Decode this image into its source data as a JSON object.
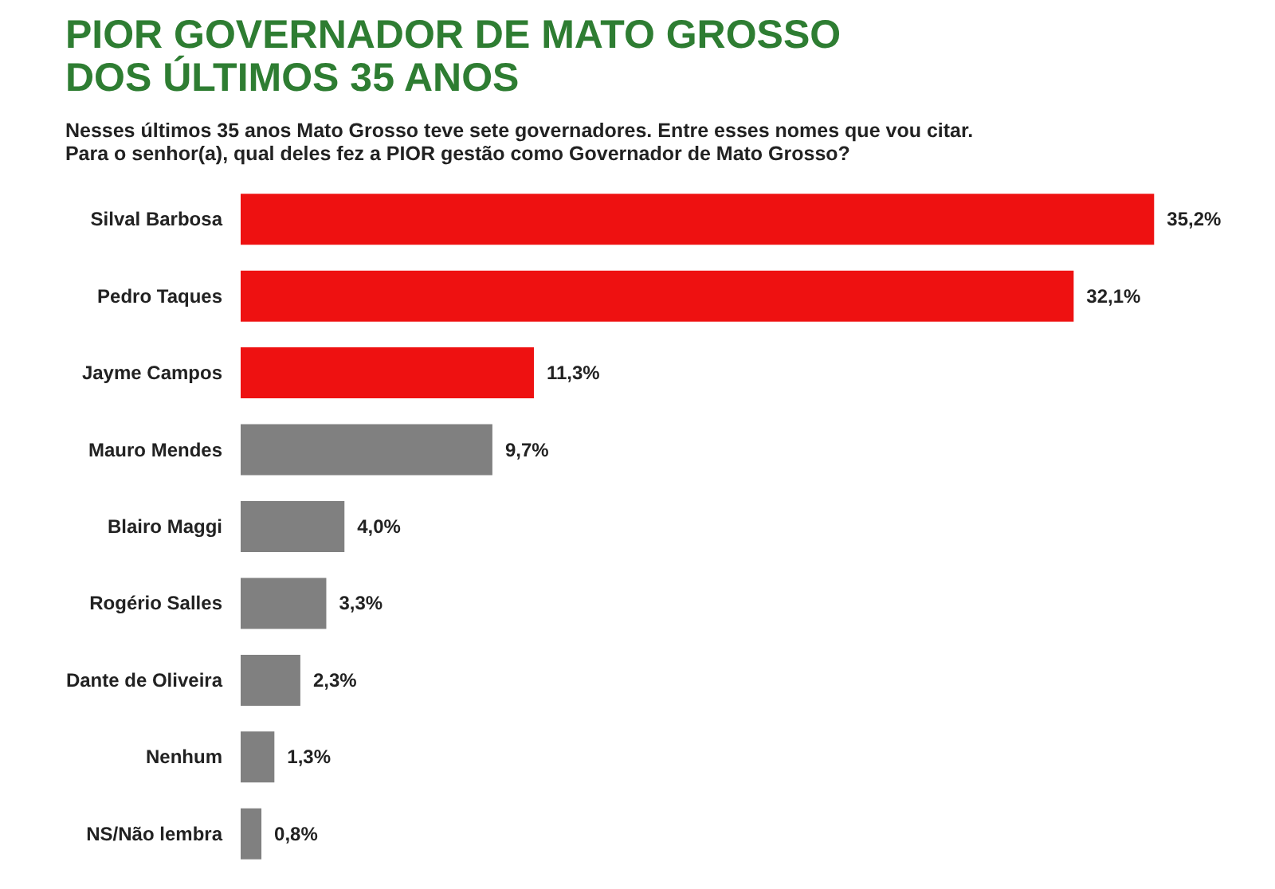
{
  "chart_data": {
    "type": "bar",
    "orientation": "horizontal",
    "title": [
      "PIOR GOVERNADOR DE MATO GROSSO",
      "DOS ÚLTIMOS 35 ANOS"
    ],
    "subtitle": [
      "Nesses últimos 35 anos Mato Grosso teve sete governadores. Entre esses nomes que vou citar.",
      "Para o senhor(a), qual deles fez a PIOR gestão como Governador de Mato Grosso?"
    ],
    "categories": [
      "Silval Barbosa",
      "Pedro Taques",
      "Jayme Campos",
      "Mauro Mendes",
      "Blairo Maggi",
      "Rogério Salles",
      "Dante de Oliveira",
      "Nenhum",
      "NS/Não lembra"
    ],
    "values": [
      35.2,
      32.1,
      11.3,
      9.7,
      4.0,
      3.3,
      2.3,
      1.3,
      0.8
    ],
    "value_labels": [
      "35,2%",
      "32,1%",
      "11,3%",
      "9,7%",
      "4,0%",
      "3,3%",
      "2,3%",
      "1,3%",
      "0,8%"
    ],
    "colors": [
      "#ee1111",
      "#ee1111",
      "#ee1111",
      "#808080",
      "#808080",
      "#808080",
      "#808080",
      "#808080",
      "#808080"
    ],
    "grid": false
  }
}
